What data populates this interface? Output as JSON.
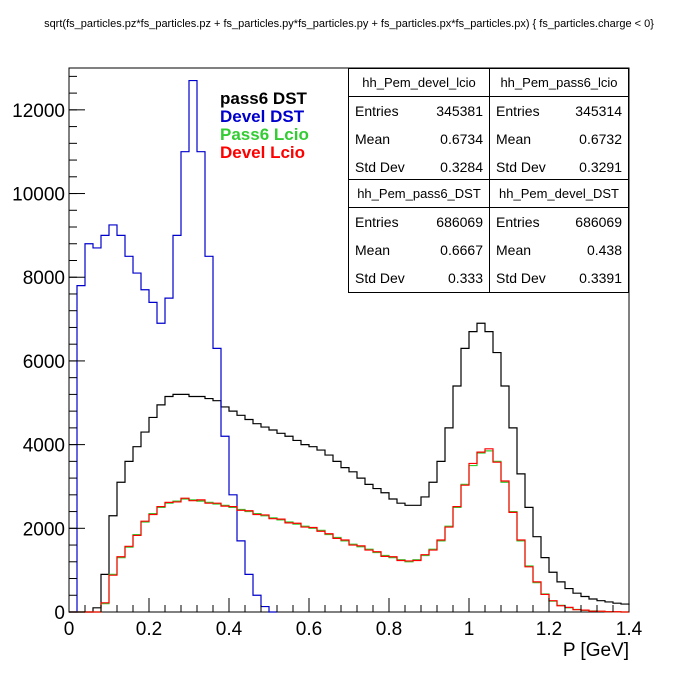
{
  "title": "sqrt(fs_particles.pz*fs_particles.pz + fs_particles.py*fs_particles.py + fs_particles.px*fs_particles.px) { fs_particles.charge < 0}",
  "colors": {
    "pass6_dst": "#000000",
    "devel_dst": "#0000cc",
    "pass6_lcio": "#33cc33",
    "devel_lcio": "#ff0000"
  },
  "legend": [
    {
      "label": "pass6 DST",
      "color": "#000000"
    },
    {
      "label": "Devel DST",
      "color": "#0000cc"
    },
    {
      "label": "Pass6 Lcio",
      "color": "#33cc33"
    },
    {
      "label": "Devel Lcio",
      "color": "#ff0000"
    }
  ],
  "stats": [
    {
      "name": "hh_Pem_devel_lcio",
      "entries": "345381",
      "mean": "0.6734",
      "std": "0.3284"
    },
    {
      "name": "hh_Pem_pass6_lcio",
      "entries": "345314",
      "mean": "0.6732",
      "std": "0.3291"
    },
    {
      "name": "hh_Pem_pass6_DST",
      "entries": "686069",
      "mean": "0.6667",
      "std": "0.333"
    },
    {
      "name": "hh_Pem_devel_DST",
      "entries": "686069",
      "mean": "0.438",
      "std": "0.3391"
    }
  ],
  "stat_labels": {
    "entries": "Entries",
    "mean": "Mean",
    "std": "Std Dev"
  },
  "chart_data": {
    "type": "line",
    "xlabel": "P [GeV]",
    "ylabel": "",
    "xlim": [
      0,
      1.4
    ],
    "ylim": [
      0,
      13000
    ],
    "xticks": [
      "0",
      "0.2",
      "0.4",
      "0.6",
      "0.8",
      "1",
      "1.2",
      "1.4"
    ],
    "yticks": [
      "0",
      "2000",
      "4000",
      "6000",
      "8000",
      "10000",
      "12000"
    ],
    "grid": false,
    "legend_position": "top-center",
    "series": [
      {
        "name": "pass6 DST",
        "color": "#000000",
        "x": [
          0,
          0.02,
          0.04,
          0.06,
          0.08,
          0.1,
          0.12,
          0.14,
          0.16,
          0.18,
          0.2,
          0.22,
          0.24,
          0.26,
          0.28,
          0.3,
          0.32,
          0.34,
          0.36,
          0.38,
          0.4,
          0.42,
          0.44,
          0.46,
          0.48,
          0.5,
          0.52,
          0.54,
          0.56,
          0.58,
          0.6,
          0.62,
          0.64,
          0.66,
          0.68,
          0.7,
          0.72,
          0.74,
          0.76,
          0.78,
          0.8,
          0.82,
          0.84,
          0.86,
          0.88,
          0.9,
          0.92,
          0.94,
          0.96,
          0.98,
          1.0,
          1.02,
          1.04,
          1.06,
          1.08,
          1.1,
          1.12,
          1.14,
          1.16,
          1.18,
          1.2,
          1.22,
          1.24,
          1.26,
          1.28,
          1.3,
          1.32,
          1.34,
          1.36,
          1.38,
          1.4
        ],
        "y": [
          0,
          0,
          0,
          100,
          900,
          2300,
          3100,
          3600,
          3950,
          4300,
          4650,
          4950,
          5150,
          5200,
          5200,
          5150,
          5150,
          5100,
          5050,
          4900,
          4800,
          4700,
          4600,
          4500,
          4420,
          4350,
          4270,
          4200,
          4100,
          4000,
          3950,
          3870,
          3750,
          3600,
          3450,
          3350,
          3200,
          3050,
          2950,
          2850,
          2700,
          2600,
          2550,
          2550,
          2750,
          3100,
          3600,
          4400,
          5400,
          6300,
          6700,
          6900,
          6700,
          6200,
          5400,
          4400,
          3300,
          2500,
          1800,
          1300,
          950,
          720,
          560,
          450,
          370,
          310,
          270,
          240,
          210,
          190,
          170
        ]
      },
      {
        "name": "Devel DST",
        "color": "#0000cc",
        "x": [
          0,
          0.02,
          0.04,
          0.06,
          0.08,
          0.1,
          0.12,
          0.14,
          0.16,
          0.18,
          0.2,
          0.22,
          0.24,
          0.26,
          0.28,
          0.3,
          0.32,
          0.34,
          0.36,
          0.38,
          0.4,
          0.42,
          0.44,
          0.46,
          0.48,
          0.5
        ],
        "y": [
          0,
          7800,
          8800,
          8700,
          9000,
          9250,
          9000,
          8500,
          8100,
          7700,
          7400,
          6900,
          7500,
          9000,
          11000,
          12700,
          11000,
          8500,
          6300,
          4200,
          2800,
          1700,
          900,
          400,
          130,
          0
        ]
      },
      {
        "name": "Pass6 Lcio",
        "color": "#33cc33",
        "x": [
          0,
          0.02,
          0.04,
          0.06,
          0.08,
          0.1,
          0.12,
          0.14,
          0.16,
          0.18,
          0.2,
          0.22,
          0.24,
          0.26,
          0.28,
          0.3,
          0.32,
          0.34,
          0.36,
          0.38,
          0.4,
          0.42,
          0.44,
          0.46,
          0.48,
          0.5,
          0.52,
          0.54,
          0.56,
          0.58,
          0.6,
          0.62,
          0.64,
          0.66,
          0.68,
          0.7,
          0.72,
          0.74,
          0.76,
          0.78,
          0.8,
          0.82,
          0.84,
          0.86,
          0.88,
          0.9,
          0.92,
          0.94,
          0.96,
          0.98,
          1.0,
          1.02,
          1.04,
          1.06,
          1.08,
          1.1,
          1.12,
          1.14,
          1.16,
          1.18,
          1.2,
          1.22,
          1.24,
          1.26,
          1.28,
          1.3,
          1.32,
          1.34,
          1.36,
          1.38,
          1.4
        ],
        "y": [
          0,
          0,
          0,
          0,
          200,
          900,
          1300,
          1550,
          1850,
          2150,
          2350,
          2500,
          2600,
          2650,
          2700,
          2680,
          2650,
          2620,
          2580,
          2550,
          2500,
          2450,
          2400,
          2350,
          2300,
          2250,
          2200,
          2150,
          2100,
          2050,
          2000,
          1950,
          1850,
          1780,
          1700,
          1620,
          1560,
          1500,
          1420,
          1350,
          1300,
          1250,
          1200,
          1250,
          1350,
          1500,
          1700,
          2050,
          2500,
          3050,
          3500,
          3800,
          3850,
          3600,
          3100,
          2400,
          1700,
          1100,
          700,
          430,
          260,
          160,
          100,
          60,
          40,
          25,
          15,
          10,
          5,
          0,
          0
        ]
      },
      {
        "name": "Devel Lcio",
        "color": "#ff0000",
        "x": [
          0,
          0.02,
          0.04,
          0.06,
          0.08,
          0.1,
          0.12,
          0.14,
          0.16,
          0.18,
          0.2,
          0.22,
          0.24,
          0.26,
          0.28,
          0.3,
          0.32,
          0.34,
          0.36,
          0.38,
          0.4,
          0.42,
          0.44,
          0.46,
          0.48,
          0.5,
          0.52,
          0.54,
          0.56,
          0.58,
          0.6,
          0.62,
          0.64,
          0.66,
          0.68,
          0.7,
          0.72,
          0.74,
          0.76,
          0.78,
          0.8,
          0.82,
          0.84,
          0.86,
          0.88,
          0.9,
          0.92,
          0.94,
          0.96,
          0.98,
          1.0,
          1.02,
          1.04,
          1.06,
          1.08,
          1.1,
          1.12,
          1.14,
          1.16,
          1.18,
          1.2,
          1.22,
          1.24,
          1.26,
          1.28,
          1.3,
          1.32,
          1.34,
          1.36,
          1.38,
          1.4
        ],
        "y": [
          0,
          0,
          0,
          0,
          220,
          880,
          1320,
          1570,
          1830,
          2170,
          2330,
          2520,
          2620,
          2630,
          2720,
          2660,
          2680,
          2600,
          2600,
          2530,
          2520,
          2430,
          2420,
          2330,
          2320,
          2230,
          2220,
          2130,
          2120,
          2030,
          2020,
          1930,
          1870,
          1760,
          1720,
          1600,
          1580,
          1480,
          1440,
          1330,
          1320,
          1230,
          1220,
          1230,
          1370,
          1480,
          1720,
          2030,
          2520,
          3030,
          3550,
          3820,
          3900,
          3580,
          3130,
          2380,
          1720,
          1080,
          720,
          420,
          270,
          150,
          110,
          55,
          45,
          20,
          18,
          8,
          6,
          0,
          0
        ]
      }
    ]
  }
}
